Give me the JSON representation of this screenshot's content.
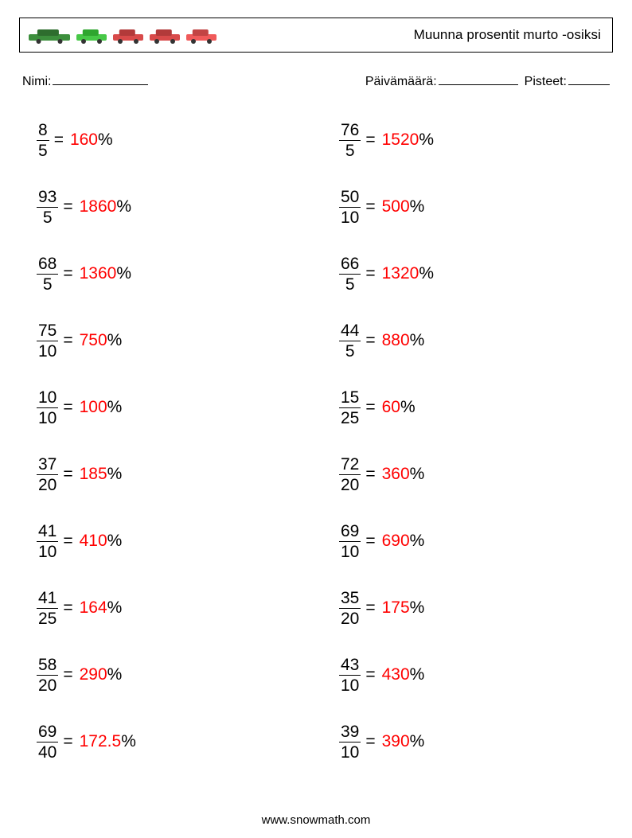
{
  "header": {
    "title": "Muunna prosentit murto -osiksi",
    "car_colors": [
      {
        "body": "#3d8f3d",
        "roof": "#2e6d2e"
      },
      {
        "body": "#47c847",
        "roof": "#2fa52f"
      },
      {
        "body": "#d84a4a",
        "roof": "#b23a3a"
      },
      {
        "body": "#d84a4a",
        "roof": "#b23a3a"
      },
      {
        "body": "#f05a5a",
        "roof": "#c24444"
      }
    ]
  },
  "meta": {
    "name_label": "Nimi:",
    "date_label": "Päivämäärä:",
    "score_label": "Pisteet:"
  },
  "problems": {
    "left": [
      {
        "num": "8",
        "den": "5",
        "answer": "160"
      },
      {
        "num": "93",
        "den": "5",
        "answer": "1860"
      },
      {
        "num": "68",
        "den": "5",
        "answer": "1360"
      },
      {
        "num": "75",
        "den": "10",
        "answer": "750"
      },
      {
        "num": "10",
        "den": "10",
        "answer": "100"
      },
      {
        "num": "37",
        "den": "20",
        "answer": "185"
      },
      {
        "num": "41",
        "den": "10",
        "answer": "410"
      },
      {
        "num": "41",
        "den": "25",
        "answer": "164"
      },
      {
        "num": "58",
        "den": "20",
        "answer": "290"
      },
      {
        "num": "69",
        "den": "40",
        "answer": "172.5"
      }
    ],
    "right": [
      {
        "num": "76",
        "den": "5",
        "answer": "1520"
      },
      {
        "num": "50",
        "den": "10",
        "answer": "500"
      },
      {
        "num": "66",
        "den": "5",
        "answer": "1320"
      },
      {
        "num": "44",
        "den": "5",
        "answer": "880"
      },
      {
        "num": "15",
        "den": "25",
        "answer": "60"
      },
      {
        "num": "72",
        "den": "20",
        "answer": "360"
      },
      {
        "num": "69",
        "den": "10",
        "answer": "690"
      },
      {
        "num": "35",
        "den": "20",
        "answer": "175"
      },
      {
        "num": "43",
        "den": "10",
        "answer": "430"
      },
      {
        "num": "39",
        "den": "10",
        "answer": "390"
      }
    ]
  },
  "symbols": {
    "equals": "=",
    "percent": "%"
  },
  "footer": {
    "text": "www.snowmath.com"
  }
}
